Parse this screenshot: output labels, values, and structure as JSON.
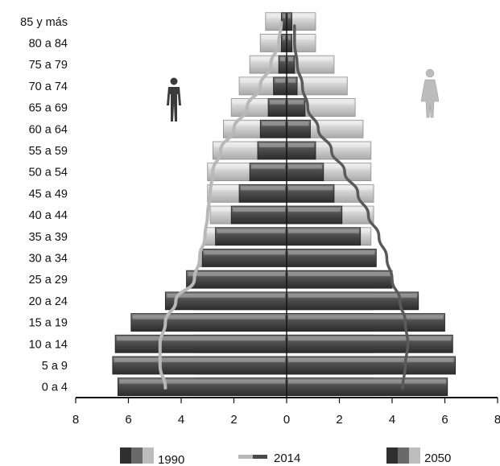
{
  "chart_data": {
    "type": "bar",
    "subtype": "population-pyramid",
    "categories": [
      "0 a 4",
      "5 a 9",
      "10 a 14",
      "15 a 19",
      "20 a 24",
      "25 a 29",
      "30 a 34",
      "35 a 39",
      "40 a 44",
      "45 a 49",
      "50 a 54",
      "55 a 59",
      "60 a 64",
      "65 a 69",
      "70 a 74",
      "75 a 79",
      "80 a 84",
      "85 y más"
    ],
    "x_ticks": [
      8,
      6,
      4,
      2,
      0,
      2,
      4,
      6,
      8
    ],
    "xlim": [
      -8,
      8
    ],
    "grid": false,
    "series": [
      {
        "name": "1990",
        "style": "bars-light",
        "left": [
          3.5,
          3.5,
          3.5,
          3.5,
          3.5,
          3.5,
          3.3,
          3.1,
          2.9,
          3.0,
          3.0,
          2.8,
          2.4,
          2.1,
          1.8,
          1.4,
          1.0,
          0.8
        ],
        "right": [
          3.3,
          3.3,
          3.3,
          3.3,
          3.3,
          3.3,
          3.2,
          3.2,
          3.3,
          3.3,
          3.2,
          3.2,
          2.9,
          2.6,
          2.3,
          1.8,
          1.1,
          1.1
        ]
      },
      {
        "name": "2050",
        "style": "bars-dark",
        "left": [
          6.4,
          6.6,
          6.5,
          5.9,
          4.6,
          3.8,
          3.2,
          2.7,
          2.1,
          1.8,
          1.4,
          1.1,
          1.0,
          0.7,
          0.5,
          0.3,
          0.2,
          0.2
        ],
        "right": [
          6.1,
          6.4,
          6.3,
          6.0,
          5.0,
          4.0,
          3.4,
          2.8,
          2.1,
          1.8,
          1.4,
          1.1,
          0.9,
          0.7,
          0.4,
          0.3,
          0.2,
          0.2
        ]
      },
      {
        "name": "2014",
        "style": "line",
        "left": [
          4.6,
          4.8,
          4.8,
          4.6,
          4.2,
          3.5,
          3.3,
          3.1,
          3.0,
          2.9,
          2.8,
          2.5,
          2.0,
          1.5,
          1.0,
          0.6,
          0.3,
          0.2
        ],
        "right": [
          4.4,
          4.5,
          4.6,
          4.5,
          4.3,
          4.0,
          3.8,
          3.5,
          3.1,
          2.7,
          2.2,
          1.7,
          1.2,
          0.8,
          0.6,
          0.4,
          0.3,
          0.3
        ]
      }
    ],
    "icons": {
      "left": "male-figure-icon",
      "right": "female-figure-icon"
    },
    "legend_position": "bottom",
    "colors": {
      "light_bar": "#bdbdbd",
      "dark_bar": "#4a4a4a",
      "line_male": "#b8b8b8",
      "line_female": "#5a5a5a",
      "axis": "#111111"
    }
  },
  "legend": {
    "items": [
      {
        "label": "1990"
      },
      {
        "label": "2014"
      },
      {
        "label": "2050"
      }
    ]
  }
}
